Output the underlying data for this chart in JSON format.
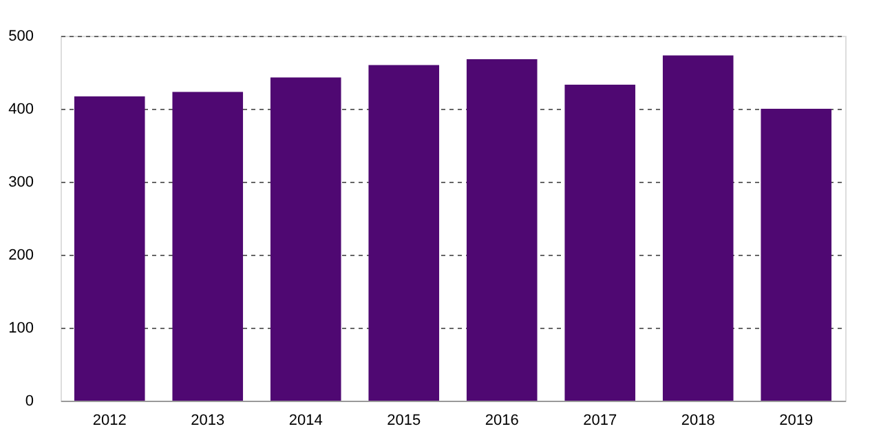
{
  "chart_data": {
    "type": "bar",
    "categories": [
      "2012",
      "2013",
      "2014",
      "2015",
      "2016",
      "2017",
      "2018",
      "2019"
    ],
    "values": [
      417,
      423,
      443,
      460,
      468,
      433,
      473,
      400
    ],
    "color": "#4f0872",
    "ylim": [
      0,
      500
    ],
    "yticks": [
      0,
      100,
      200,
      300,
      400,
      500
    ],
    "grid": "y"
  }
}
